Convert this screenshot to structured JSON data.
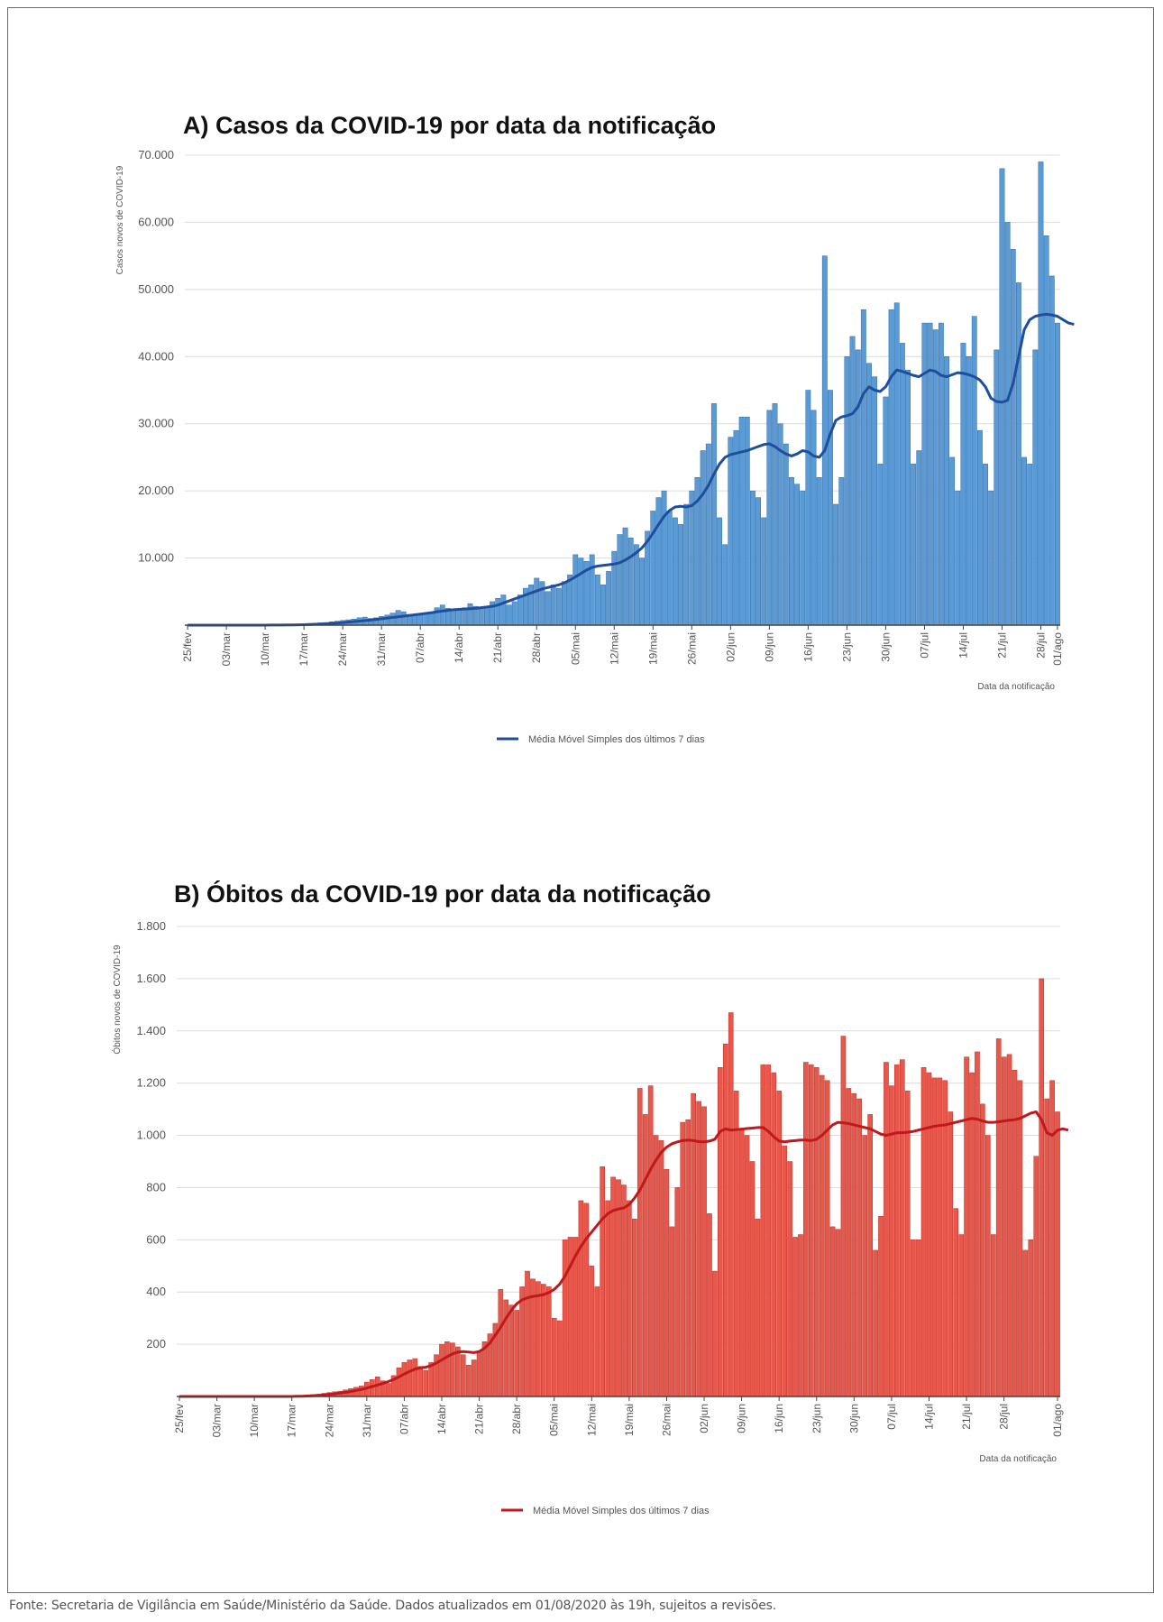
{
  "chart_data": [
    {
      "type": "bar",
      "title": "A) Casos da COVID-19 por data da notificação",
      "ylabel": "Casos novos de COVID-19",
      "xlabel": "Data da notificação",
      "ylim": [
        0,
        70000
      ],
      "yticks": [
        10000,
        20000,
        30000,
        40000,
        50000,
        60000,
        70000
      ],
      "ytick_labels": [
        "10.000",
        "20.000",
        "30.000",
        "40.000",
        "50.000",
        "60.000",
        "70.000"
      ],
      "xtick_labels": [
        "25/fev",
        "03/mar",
        "10/mar",
        "17/mar",
        "24/mar",
        "31/mar",
        "07/abr",
        "14/abr",
        "21/abr",
        "28/abr",
        "05/mai",
        "12/mai",
        "19/mai",
        "26/mai",
        "02/jun",
        "09/jun",
        "16/jun",
        "23/jun",
        "30/jun",
        "07/jul",
        "14/jul",
        "21/jul",
        "28/jul",
        "01/ago"
      ],
      "grid": true,
      "legend_position": "bottom",
      "bar_color": "#5b9bd5",
      "line_color": "#1f4e9c",
      "series": [
        {
          "name": "Casos novos",
          "kind": "bar",
          "values": [
            1,
            0,
            0,
            1,
            0,
            0,
            0,
            1,
            2,
            0,
            2,
            4,
            7,
            10,
            13,
            20,
            30,
            50,
            75,
            100,
            150,
            200,
            250,
            300,
            350,
            400,
            500,
            600,
            700,
            800,
            900,
            1100,
            1200,
            1000,
            1100,
            1300,
            1500,
            1800,
            2200,
            2000,
            1600,
            1400,
            1500,
            1700,
            2000,
            2600,
            3000,
            2500,
            2200,
            2400,
            2600,
            3200,
            2800,
            2500,
            2700,
            3500,
            4000,
            4500,
            3000,
            3500,
            4500,
            5500,
            6000,
            7000,
            6500,
            5000,
            6000,
            5500,
            6500,
            7500,
            10500,
            10000,
            9500,
            10500,
            7500,
            6000,
            8000,
            11000,
            13500,
            14500,
            13000,
            12000,
            10000,
            14000,
            17000,
            19000,
            20000,
            17000,
            16000,
            15000,
            18000,
            20000,
            22000,
            26000,
            27000,
            33000,
            16000,
            12000,
            28000,
            29000,
            31000,
            31000,
            20000,
            19000,
            16000,
            32000,
            33000,
            30000,
            27000,
            22000,
            21000,
            20000,
            35000,
            32000,
            22000,
            55000,
            35000,
            18000,
            22000,
            40000,
            43000,
            41000,
            47000,
            39000,
            37000,
            24000,
            34000,
            47000,
            48000,
            42000,
            38000,
            24000,
            26000,
            45000,
            45000,
            44000,
            45000,
            40000,
            25000,
            20000,
            42000,
            40000,
            46000,
            29000,
            24000,
            20000,
            41000,
            68000,
            60000,
            56000,
            51000,
            25000,
            24000,
            41000,
            69000,
            58000,
            52000,
            45000
          ],
          "style": "bar"
        },
        {
          "name": "Média Móvel Simples dos últimos 7 dias",
          "kind": "line",
          "values": [
            0,
            0,
            0,
            0,
            0,
            0,
            0,
            1,
            1,
            1,
            1,
            2,
            3,
            4,
            6,
            9,
            12,
            18,
            27,
            40,
            55,
            75,
            100,
            130,
            165,
            200,
            250,
            310,
            380,
            450,
            520,
            600,
            680,
            760,
            850,
            950,
            1050,
            1150,
            1250,
            1350,
            1450,
            1550,
            1650,
            1750,
            1850,
            2000,
            2100,
            2200,
            2300,
            2350,
            2400,
            2450,
            2500,
            2600,
            2700,
            2800,
            3000,
            3300,
            3600,
            3900,
            4200,
            4500,
            4800,
            5100,
            5400,
            5600,
            5800,
            6000,
            6300,
            6700,
            7200,
            7700,
            8200,
            8600,
            8800,
            8900,
            9000,
            9100,
            9300,
            9700,
            10200,
            10800,
            11500,
            12500,
            13700,
            15000,
            16200,
            17100,
            17600,
            17700,
            17600,
            17800,
            18500,
            19500,
            20800,
            22500,
            24000,
            25000,
            25400,
            25600,
            25800,
            26000,
            26300,
            26600,
            26900,
            27000,
            26600,
            26000,
            25500,
            25200,
            25500,
            26000,
            25800,
            25200,
            25000,
            26000,
            28500,
            30500,
            31000,
            31200,
            31500,
            32500,
            34500,
            35500,
            35000,
            34800,
            35500,
            37000,
            38000,
            37800,
            37500,
            37200,
            37000,
            37500,
            38000,
            37800,
            37200,
            37000,
            37300,
            37600,
            37500,
            37300,
            37000,
            36500,
            35500,
            33800,
            33300,
            33200,
            33500,
            36000,
            40000,
            44000,
            45500,
            46000,
            46200,
            46300,
            46200,
            46000,
            45500,
            45000,
            44800
          ],
          "style": "line"
        }
      ]
    },
    {
      "type": "bar",
      "title": "B) Óbitos da COVID-19 por data da notificação",
      "ylabel": "Óbitos novos de COVID-19",
      "xlabel": "Data da notificação",
      "ylim": [
        0,
        1800
      ],
      "yticks": [
        200,
        400,
        600,
        800,
        1000,
        1200,
        1400,
        1600,
        1800
      ],
      "ytick_labels": [
        "200",
        "400",
        "600",
        "800",
        "1.000",
        "1.200",
        "1.400",
        "1.600",
        "1.800"
      ],
      "xtick_labels": [
        "25/fev",
        "03/mar",
        "10/mar",
        "17/mar",
        "24/mar",
        "31/mar",
        "07/abr",
        "14/abr",
        "21/abr",
        "28/abr",
        "05/mai",
        "12/mai",
        "19/mai",
        "26/mai",
        "02/jun",
        "09/jun",
        "16/jun",
        "23/jun",
        "30/jun",
        "07/jul",
        "14/jul",
        "21/jul",
        "28/jul",
        "01/ago"
      ],
      "grid": true,
      "legend_position": "bottom",
      "bar_color": "#e8574a",
      "line_color": "#c0181b",
      "series": [
        {
          "name": "Óbitos novos",
          "kind": "bar",
          "values": [
            0,
            0,
            0,
            0,
            0,
            0,
            0,
            0,
            0,
            0,
            0,
            0,
            0,
            0,
            0,
            0,
            0,
            0,
            0,
            0,
            0,
            1,
            2,
            3,
            5,
            7,
            9,
            12,
            15,
            18,
            20,
            25,
            30,
            35,
            40,
            55,
            65,
            75,
            60,
            50,
            80,
            110,
            130,
            140,
            145,
            115,
            100,
            130,
            160,
            200,
            210,
            205,
            190,
            160,
            120,
            140,
            170,
            210,
            240,
            280,
            410,
            370,
            350,
            330,
            420,
            480,
            450,
            440,
            430,
            420,
            300,
            290,
            600,
            610,
            610,
            750,
            740,
            500,
            420,
            880,
            750,
            840,
            830,
            810,
            750,
            680,
            1180,
            1080,
            1190,
            1000,
            980,
            870,
            650,
            800,
            1050,
            1060,
            1160,
            1130,
            1110,
            700,
            480,
            1260,
            1350,
            1470,
            1170,
            1020,
            1000,
            900,
            680,
            1270,
            1270,
            1240,
            1170,
            960,
            900,
            610,
            620,
            1280,
            1270,
            1260,
            1230,
            1210,
            650,
            640,
            1380,
            1180,
            1160,
            1140,
            1000,
            1080,
            560,
            690,
            1280,
            1190,
            1270,
            1290,
            1170,
            600,
            600,
            1260,
            1240,
            1220,
            1220,
            1210,
            1090,
            720,
            620,
            1300,
            1240,
            1320,
            1120,
            1000,
            620,
            1370,
            1300,
            1310,
            1250,
            1210,
            560,
            600,
            920,
            1600,
            1140,
            1210,
            1090
          ],
          "style": "bar"
        },
        {
          "name": "Média Móvel Simples dos últimos 7 dias",
          "kind": "line",
          "values": [
            0,
            0,
            0,
            0,
            0,
            0,
            0,
            0,
            0,
            0,
            0,
            0,
            0,
            0,
            0,
            0,
            0,
            0,
            0,
            0,
            0,
            0,
            1,
            1,
            2,
            3,
            4,
            6,
            8,
            10,
            13,
            16,
            19,
            23,
            27,
            32,
            38,
            44,
            50,
            57,
            65,
            75,
            86,
            96,
            105,
            110,
            112,
            118,
            128,
            140,
            152,
            163,
            170,
            172,
            170,
            168,
            172,
            185,
            205,
            235,
            265,
            300,
            330,
            355,
            370,
            378,
            383,
            386,
            390,
            398,
            410,
            430,
            460,
            500,
            540,
            575,
            605,
            630,
            655,
            680,
            700,
            712,
            718,
            722,
            735,
            760,
            790,
            830,
            870,
            905,
            935,
            955,
            968,
            975,
            980,
            982,
            980,
            976,
            975,
            978,
            985,
            1015,
            1025,
            1020,
            1022,
            1024,
            1026,
            1028,
            1030,
            1030,
            1015,
            995,
            978,
            975,
            978,
            980,
            982,
            982,
            980,
            985,
            1000,
            1020,
            1040,
            1050,
            1048,
            1045,
            1040,
            1035,
            1030,
            1025,
            1015,
            1005,
            1000,
            1005,
            1010,
            1010,
            1012,
            1015,
            1020,
            1025,
            1030,
            1035,
            1038,
            1040,
            1045,
            1050,
            1055,
            1060,
            1065,
            1062,
            1055,
            1050,
            1050,
            1052,
            1055,
            1058,
            1060,
            1065,
            1075,
            1085,
            1090,
            1060,
            1010,
            1000,
            1020,
            1025,
            1020
          ],
          "style": "line"
        }
      ]
    }
  ],
  "footer": {
    "source": "Fonte: Secretaria de Vigilância em Saúde/Ministério da Saúde. Dados atualizados em 01/08/2020 às 19h, sujeitos a revisões."
  }
}
